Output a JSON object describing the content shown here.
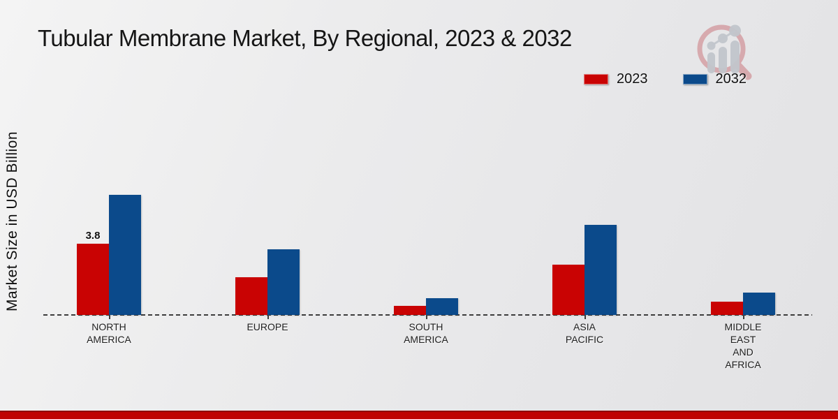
{
  "title": "Tubular Membrane Market, By Regional, 2023 & 2032",
  "legend": {
    "position": "top-right",
    "items": [
      {
        "label": "2023",
        "color": "#c90303"
      },
      {
        "label": "2032",
        "color": "#0b4a8b"
      }
    ]
  },
  "branding": {
    "logo_icon": "magnifier-growth-bars-watermark-icon",
    "footer_stripe_color": "#bf0202",
    "footer_stripe_edge_color": "#8e0000",
    "logo_ring_color": "#c05058",
    "logo_bars_color": "#c2c6cc"
  },
  "chart_data": {
    "type": "bar",
    "title": "Tubular Membrane Market, By Regional, 2023 & 2032",
    "ylabel": "Market Size in USD Billion",
    "xlabel": "",
    "categories": [
      "NORTH AMERICA",
      "EUROPE",
      "SOUTH AMERICA",
      "ASIA PACIFIC",
      "MIDDLE EAST AND AFRICA"
    ],
    "category_label_lines": [
      [
        "NORTH",
        "AMERICA"
      ],
      [
        "EUROPE"
      ],
      [
        "SOUTH",
        "AMERICA"
      ],
      [
        "ASIA",
        "PACIFIC"
      ],
      [
        "MIDDLE",
        "EAST",
        "AND",
        "AFRICA"
      ]
    ],
    "series": [
      {
        "name": "2023",
        "color": "#c90303",
        "values": [
          3.8,
          2.0,
          0.5,
          2.7,
          0.7
        ]
      },
      {
        "name": "2032",
        "color": "#0b4a8b",
        "values": [
          6.4,
          3.5,
          0.9,
          4.8,
          1.2
        ]
      }
    ],
    "data_labels": [
      {
        "series": "2023",
        "category_index": 0,
        "text": "3.8"
      }
    ],
    "ylim": [
      0,
      7
    ],
    "y_axis_ticks_visible": false,
    "gridlines": false,
    "baseline_style": "dashed",
    "legend_position": "top-right"
  }
}
